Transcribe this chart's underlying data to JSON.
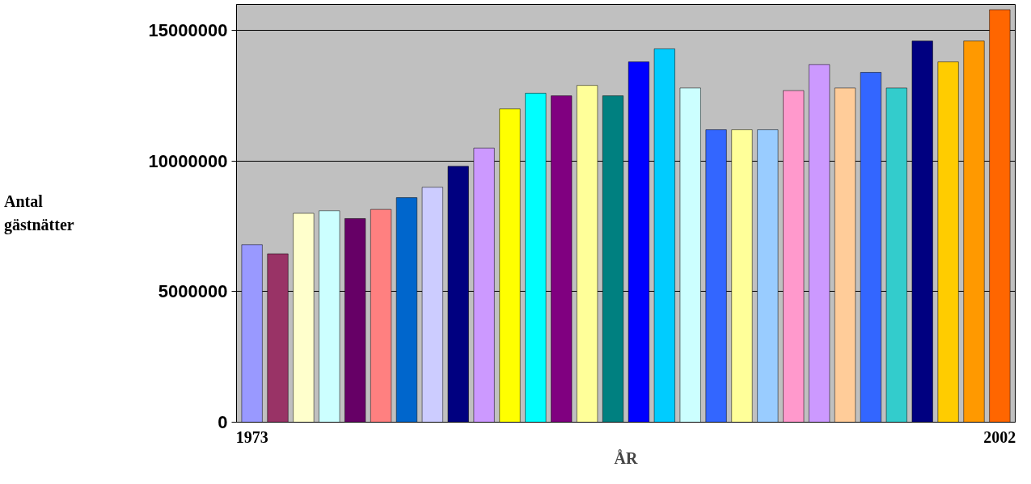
{
  "chart_data": {
    "type": "bar",
    "xlabel": "ÅR",
    "ylabel": "Antal\ngästnätter",
    "categories": [
      "1973",
      null,
      null,
      null,
      null,
      null,
      null,
      null,
      null,
      null,
      null,
      null,
      null,
      null,
      null,
      null,
      null,
      null,
      null,
      null,
      null,
      null,
      null,
      null,
      null,
      null,
      null,
      null,
      null,
      "2002"
    ],
    "values": [
      6800000,
      6450000,
      8000000,
      8100000,
      7800000,
      8150000,
      8600000,
      9000000,
      9800000,
      10500000,
      12000000,
      12600000,
      12500000,
      12900000,
      12500000,
      13800000,
      14300000,
      12800000,
      11200000,
      11200000,
      11200000,
      12700000,
      13700000,
      12800000,
      13400000,
      12800000,
      14600000,
      13800000,
      14600000,
      15800000
    ],
    "colors": [
      "#9999ff",
      "#993366",
      "#ffffcc",
      "#ccffff",
      "#660066",
      "#ff8080",
      "#0066cc",
      "#ccccff",
      "#000080",
      "#cc99ff",
      "#ffff00",
      "#00ffff",
      "#800080",
      "#ffff99",
      "#008080",
      "#0000ff",
      "#00ccff",
      "#ccffff",
      "#3366ff",
      "#ffff99",
      "#99ccff",
      "#ff99cc",
      "#cc99ff",
      "#ffcc99",
      "#3366ff",
      "#33cccc",
      "#000080",
      "#ffcc00",
      "#ff9900",
      "#ff6600"
    ],
    "ylim": [
      0,
      16000000
    ],
    "yticks": [
      0,
      5000000,
      10000000,
      15000000
    ],
    "grid": "y"
  }
}
